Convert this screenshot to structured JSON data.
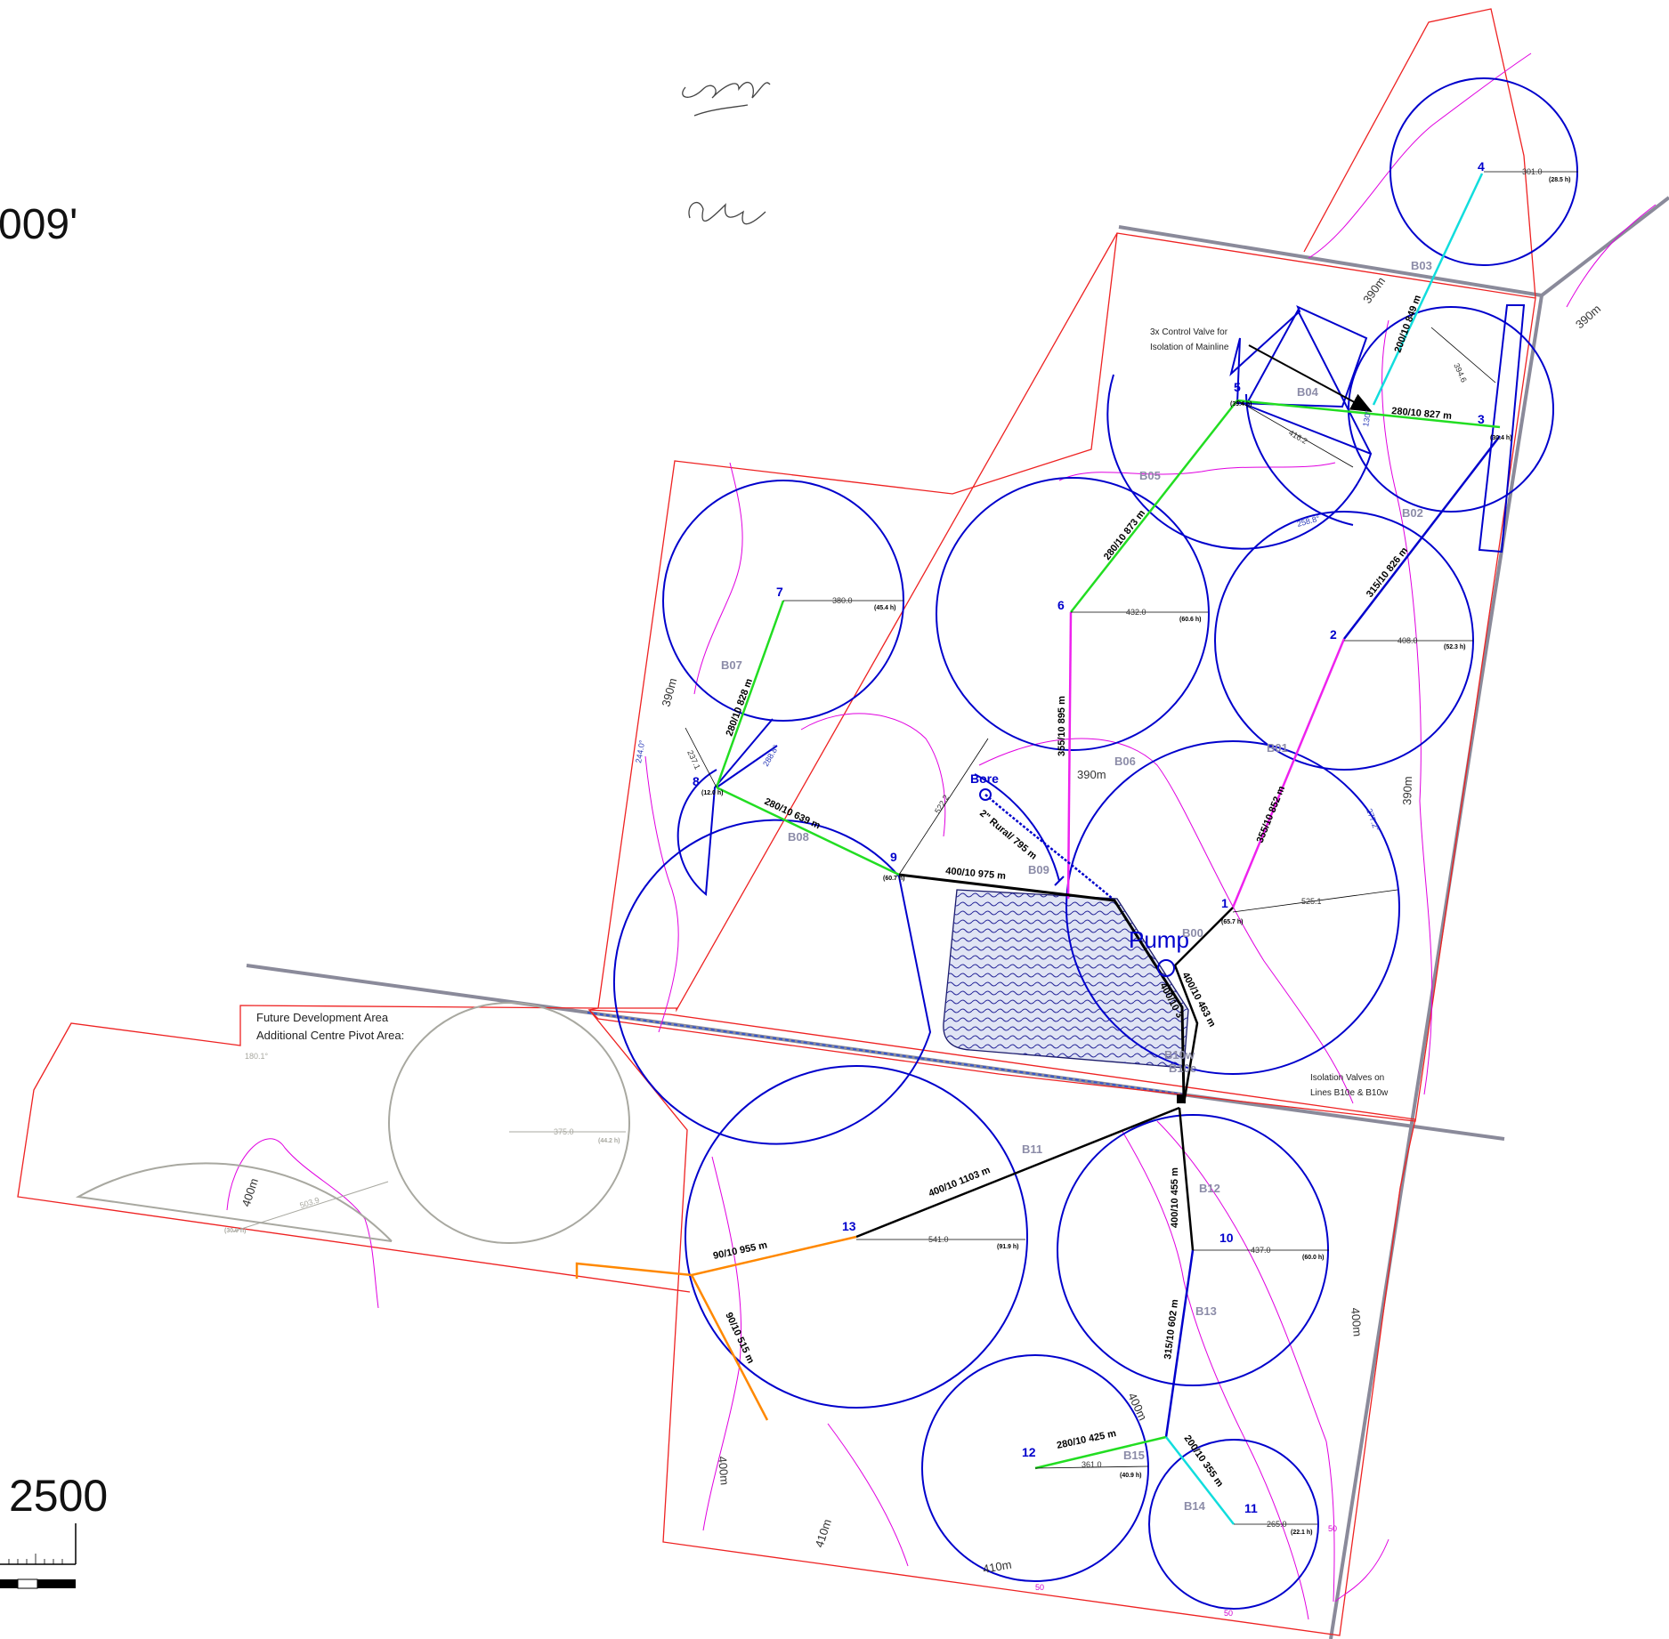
{
  "header": {
    "title_fragment": "009'",
    "scale_fragment": "2500"
  },
  "annotations": {
    "control_valve_line1": "3x Control Valve for",
    "control_valve_line2": "Isolation of Mainline",
    "isolation_line1": "Isolation Valves on",
    "isolation_line2": "Lines B10e & B10w",
    "future_line1": "Future Development Area",
    "future_line2": "Additional Centre Pivot Area:",
    "bore": "Bore",
    "pump": "Pump",
    "bore_pipe": "2\" Rural/ 795 m",
    "b10w_fragment": "B10w",
    "b10e_fragment": "B10e"
  },
  "pivots": [
    {
      "id": "1",
      "radius": "525.1",
      "hours": "(65.7 h)"
    },
    {
      "id": "2",
      "radius": "408.0",
      "hours": "(52.3 h)"
    },
    {
      "id": "3",
      "hours": "(30.4 h)"
    },
    {
      "id": "4",
      "radius": "301.0",
      "hours": "(28.5 h)"
    },
    {
      "id": "5",
      "radius": "416.2",
      "hours": "(39.4 h)"
    },
    {
      "id": "6",
      "radius": "432.0",
      "hours": "(60.6 h)"
    },
    {
      "id": "7",
      "radius": "380.0",
      "hours": "(45.4 h)"
    },
    {
      "id": "8",
      "radius": "237.1",
      "hours": "(12.0 h)"
    },
    {
      "id": "9",
      "radius": "522.2",
      "hours": "(60.7 h)"
    },
    {
      "id": "10",
      "radius": "437.0",
      "hours": "(60.0 h)"
    },
    {
      "id": "11",
      "radius": "265.0",
      "hours": "(22.1 h)"
    },
    {
      "id": "12",
      "radius": "361.0",
      "hours": "(40.9 h)"
    },
    {
      "id": "13",
      "radius": "541.0",
      "hours": "(91.9 h)"
    }
  ],
  "future_pivot": {
    "radius": "375.0",
    "hours": "(44.2 h)",
    "half_radius": "503.9",
    "half_hours": "(30.0 h)",
    "half_arc": "180.1°"
  },
  "extra_radius_3": "394.6",
  "blocks": [
    "B00",
    "B01",
    "B02",
    "B03",
    "B04",
    "B05",
    "B06",
    "B07",
    "B08",
    "B09",
    "B11",
    "B12",
    "B13",
    "B14",
    "B15"
  ],
  "pipes": {
    "p4_3": "200/10 849 m",
    "p5_3": "280/10 827 m",
    "p6_5": "280/10 873 m",
    "p3_2": "315/10 826 m",
    "p2_1": "355/10 852 m",
    "p6_pump": "355/10 895 m",
    "p7_8": "280/10 828 m",
    "p8_9": "280/10 639 m",
    "p9_pump": "400/10 975 m",
    "pump_a": "400/10 463 m",
    "pump_b": "400/10 3",
    "p13_jn": "400/10 1103 m",
    "p13_w": "90/10 955 m",
    "p13_s": "90/10 515 m",
    "p10_jn": "400/10 455 m",
    "p10_11": "315/10 602 m",
    "p12": "280/10 425 m",
    "p11": "200/10 355 m"
  },
  "arc_labels": [
    "244.0°",
    "288.8°",
    "277.2°",
    "258.8°",
    "130°"
  ],
  "distances": [
    "390m",
    "390m",
    "390m",
    "390m",
    "390m",
    "400m",
    "400m",
    "400m",
    "400m",
    "410m",
    "410m",
    "420m"
  ],
  "edge_marks": [
    "50",
    "50",
    "50"
  ],
  "colors": {
    "boundary": "#ee2222",
    "pivot": "#0000cc",
    "road": "#8a8a9a",
    "contour": "#e000e0",
    "pipe_green": "#22dd22",
    "pipe_magenta": "#ee22ee",
    "pipe_cyan": "#11dddd",
    "pipe_black": "#000000",
    "pipe_orange": "#ff8800",
    "future": "#a8a8a0",
    "dam_fill": "#e0e4f4"
  }
}
